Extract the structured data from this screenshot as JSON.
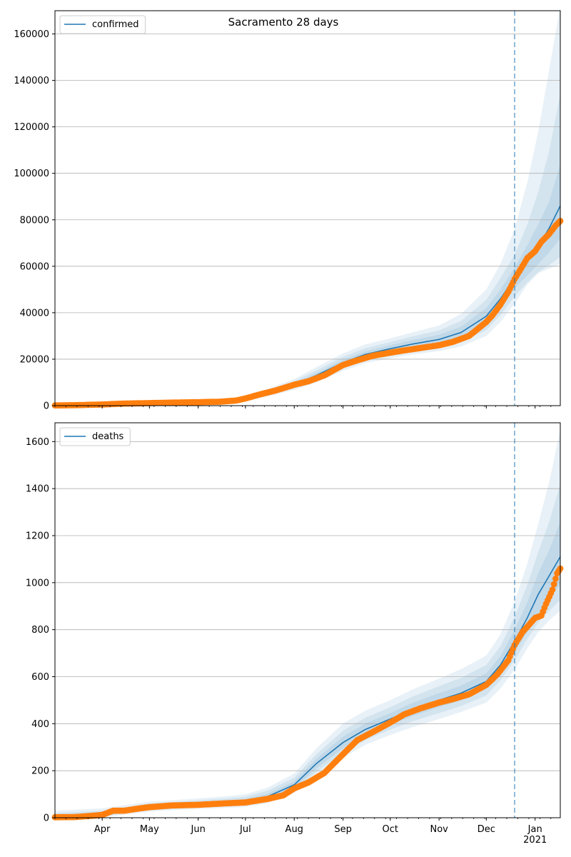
{
  "colors": {
    "model_line": "#1f77b4",
    "band": "#1f77b4",
    "observed": "#ff7f0e",
    "grid": "#b0b0b0",
    "forecast_marker": "#1f77b4"
  },
  "chart_data": [
    {
      "type": "line",
      "title": "Sacramento 28 days",
      "legend": [
        "confirmed"
      ],
      "legend_position": "top-left",
      "grid": "horizontal",
      "xlabel": "",
      "ylabel": "",
      "x_range": [
        "2020-03-02",
        "2021-01-17"
      ],
      "ylim": [
        0,
        170000
      ],
      "yticks": [
        0,
        20000,
        40000,
        60000,
        80000,
        100000,
        120000,
        140000,
        160000
      ],
      "forecast_start": "2020-12-19",
      "series": [
        {
          "name": "confirmed",
          "kind": "model",
          "x": [
            "2020-03-02",
            "2020-04-01",
            "2020-05-01",
            "2020-06-01",
            "2020-06-20",
            "2020-07-01",
            "2020-07-15",
            "2020-08-01",
            "2020-08-15",
            "2020-09-01",
            "2020-09-15",
            "2020-10-01",
            "2020-10-15",
            "2020-11-01",
            "2020-11-15",
            "2020-12-01",
            "2020-12-10",
            "2020-12-19",
            "2020-12-27",
            "2021-01-03",
            "2021-01-10",
            "2021-01-17"
          ],
          "values": [
            0,
            300,
            800,
            1200,
            1600,
            3000,
            5500,
            9000,
            13000,
            18500,
            22000,
            24500,
            26500,
            28500,
            31500,
            38500,
            46000,
            55000,
            62000,
            68500,
            76500,
            86000
          ],
          "band_inner_low": [
            0,
            250,
            700,
            1050,
            1400,
            2700,
            5000,
            8200,
            12000,
            17300,
            20700,
            23000,
            24800,
            26500,
            29000,
            35000,
            42000,
            50500,
            56000,
            61000,
            66000,
            72000
          ],
          "band_inner_high": [
            0,
            350,
            900,
            1350,
            1800,
            3300,
            6000,
            9800,
            14000,
            19700,
            23300,
            26000,
            28200,
            30500,
            34000,
            42000,
            50000,
            59500,
            69000,
            78000,
            88000,
            104000
          ],
          "band_mid_low": [
            0,
            200,
            620,
            950,
            1250,
            2400,
            4500,
            7500,
            11000,
            16200,
            19500,
            21700,
            23500,
            25000,
            27300,
            32500,
            39000,
            47000,
            53000,
            57500,
            60500,
            64000
          ],
          "band_mid_high": [
            0,
            400,
            980,
            1450,
            1950,
            3600,
            6600,
            10600,
            15200,
            21000,
            24700,
            27400,
            29800,
            32400,
            36500,
            45500,
            55000,
            65000,
            78000,
            92000,
            110000,
            134000
          ],
          "band_outer_low": [
            0,
            150,
            550,
            850,
            1100,
            2100,
            4000,
            6800,
            10000,
            15000,
            18300,
            20400,
            22000,
            23500,
            25500,
            30000,
            36000,
            44000,
            52000,
            57000,
            59000,
            61000
          ],
          "band_outer_high": [
            0,
            450,
            1060,
            1550,
            2100,
            3900,
            7200,
            11500,
            16500,
            22500,
            26300,
            29000,
            31500,
            34500,
            39500,
            50000,
            61000,
            76000,
            96000,
            118000,
            145000,
            172000
          ]
        },
        {
          "name": "observed",
          "kind": "points",
          "x": [
            "2020-03-02",
            "2020-03-15",
            "2020-04-01",
            "2020-04-15",
            "2020-05-01",
            "2020-05-15",
            "2020-06-01",
            "2020-06-15",
            "2020-06-25",
            "2020-07-01",
            "2020-07-10",
            "2020-07-20",
            "2020-08-01",
            "2020-08-10",
            "2020-08-20",
            "2020-09-01",
            "2020-09-10",
            "2020-09-20",
            "2020-10-01",
            "2020-10-10",
            "2020-10-20",
            "2020-11-01",
            "2020-11-10",
            "2020-11-20",
            "2020-12-01",
            "2020-12-05",
            "2020-12-10",
            "2020-12-15",
            "2020-12-19",
            "2020-12-23",
            "2020-12-27",
            "2021-01-01",
            "2021-01-05",
            "2021-01-10",
            "2021-01-14",
            "2021-01-17"
          ],
          "values": [
            100,
            200,
            500,
            900,
            1100,
            1300,
            1500,
            1700,
            2200,
            3100,
            4800,
            6500,
            9000,
            10500,
            13000,
            17500,
            19500,
            21500,
            22800,
            23800,
            24800,
            26000,
            27500,
            30000,
            36000,
            39000,
            43500,
            49000,
            54500,
            59000,
            63500,
            66500,
            70500,
            74000,
            77500,
            79500
          ]
        }
      ]
    },
    {
      "type": "line",
      "title": "",
      "legend": [
        "deaths"
      ],
      "legend_position": "top-left",
      "grid": "horizontal",
      "xlabel": "",
      "ylabel": "",
      "x_range": [
        "2020-03-02",
        "2021-01-17"
      ],
      "ylim": [
        0,
        1680
      ],
      "yticks": [
        0,
        200,
        400,
        600,
        800,
        1000,
        1200,
        1400,
        1600
      ],
      "xtick_labels": [
        "Apr",
        "May",
        "Jun",
        "Jul",
        "Aug",
        "Sep",
        "Oct",
        "Nov",
        "Dec",
        "Jan\n2021"
      ],
      "forecast_start": "2020-12-19",
      "series": [
        {
          "name": "deaths",
          "kind": "model",
          "x": [
            "2020-03-02",
            "2020-04-01",
            "2020-05-01",
            "2020-06-01",
            "2020-06-20",
            "2020-07-01",
            "2020-07-15",
            "2020-08-01",
            "2020-08-15",
            "2020-09-01",
            "2020-09-15",
            "2020-10-01",
            "2020-10-15",
            "2020-11-01",
            "2020-11-15",
            "2020-12-01",
            "2020-12-10",
            "2020-12-19",
            "2020-12-27",
            "2021-01-03",
            "2021-01-10",
            "2021-01-17"
          ],
          "values": [
            5,
            15,
            45,
            58,
            65,
            70,
            90,
            140,
            230,
            320,
            375,
            420,
            460,
            500,
            530,
            580,
            650,
            750,
            850,
            950,
            1030,
            1110
          ],
          "band_inner_low": [
            0,
            10,
            38,
            50,
            56,
            60,
            78,
            125,
            210,
            295,
            350,
            395,
            432,
            470,
            500,
            548,
            615,
            705,
            790,
            870,
            935,
            990
          ],
          "band_inner_high": [
            12,
            22,
            52,
            66,
            74,
            80,
            102,
            155,
            250,
            345,
            400,
            445,
            488,
            530,
            562,
            614,
            688,
            800,
            915,
            1040,
            1140,
            1260
          ],
          "band_mid_low": [
            0,
            6,
            32,
            44,
            49,
            53,
            70,
            115,
            195,
            275,
            330,
            375,
            410,
            445,
            475,
            520,
            585,
            670,
            760,
            830,
            880,
            925
          ],
          "band_mid_high": [
            20,
            30,
            60,
            74,
            83,
            90,
            115,
            170,
            270,
            370,
            425,
            470,
            515,
            560,
            595,
            650,
            730,
            855,
            990,
            1130,
            1260,
            1420
          ],
          "band_outer_low": [
            0,
            2,
            26,
            38,
            42,
            46,
            62,
            105,
            180,
            255,
            310,
            352,
            385,
            420,
            450,
            490,
            550,
            630,
            720,
            790,
            840,
            880
          ],
          "band_outer_high": [
            30,
            40,
            68,
            82,
            92,
            100,
            128,
            188,
            295,
            400,
            455,
            500,
            545,
            592,
            632,
            690,
            780,
            920,
            1080,
            1250,
            1430,
            1650
          ]
        },
        {
          "name": "observed",
          "kind": "points",
          "x": [
            "2020-03-02",
            "2020-03-15",
            "2020-03-25",
            "2020-04-01",
            "2020-04-08",
            "2020-04-15",
            "2020-04-25",
            "2020-05-01",
            "2020-05-15",
            "2020-06-01",
            "2020-06-15",
            "2020-07-01",
            "2020-07-15",
            "2020-07-25",
            "2020-08-01",
            "2020-08-10",
            "2020-08-20",
            "2020-09-01",
            "2020-09-10",
            "2020-09-20",
            "2020-10-01",
            "2020-10-10",
            "2020-10-20",
            "2020-11-01",
            "2020-11-10",
            "2020-11-20",
            "2020-12-01",
            "2020-12-08",
            "2020-12-15",
            "2020-12-19",
            "2020-12-24",
            "2021-01-01",
            "2021-01-05",
            "2021-01-08",
            "2021-01-12",
            "2021-01-15",
            "2021-01-17"
          ],
          "values": [
            2,
            3,
            8,
            12,
            30,
            30,
            40,
            45,
            52,
            55,
            60,
            65,
            80,
            95,
            125,
            150,
            190,
            270,
            330,
            365,
            405,
            440,
            465,
            490,
            505,
            525,
            565,
            610,
            670,
            735,
            790,
            850,
            860,
            910,
            970,
            1040,
            1060
          ]
        }
      ]
    }
  ]
}
